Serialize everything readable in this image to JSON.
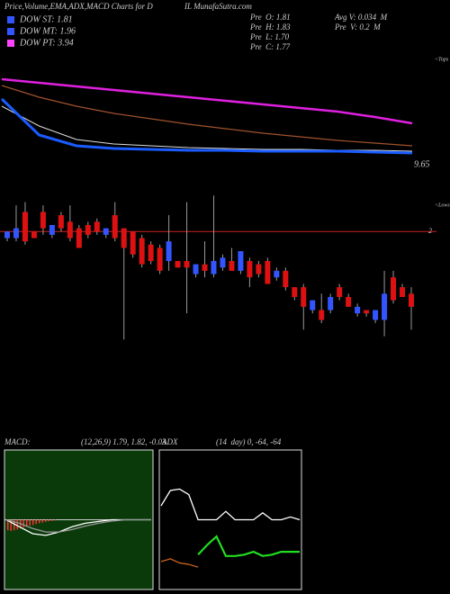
{
  "header": {
    "title": "Price,Volume,EMA,ADX,MACD Charts for D",
    "site": "IL MunafaSutra.com"
  },
  "legend": [
    {
      "label": "DOW ST: 1.81",
      "color": "#3355ff"
    },
    {
      "label": "DOW MT: 1.96",
      "color": "#3355ff"
    },
    {
      "label": "DOW PT: 3.94",
      "color": "#ff44ff"
    }
  ],
  "stats": [
    "Pre  O: 1.81",
    "Pre  H: 1.83",
    "Pre  L: 1.70",
    "Pre  C: 1.77",
    "Avg V: 0.034  M",
    "Pre  V: 0.2  M"
  ],
  "chart_data": [
    {
      "type": "line",
      "annotation": "<Tops",
      "ylim": [
        9.65,
        30
      ],
      "yticks": [
        9.65
      ],
      "series": [
        {
          "color": "#e020e0",
          "values": [
            28.28,
            27.43,
            26.57,
            25.72,
            24.86,
            24.0,
            23.15,
            22.29,
            21.43,
            20.57,
            19.29,
            17.79
          ]
        },
        {
          "color": "#a0522d",
          "values": [
            26.79,
            24.0,
            21.86,
            20.15,
            18.86,
            17.58,
            16.5,
            15.43,
            14.58,
            13.72,
            13.08,
            12.43
          ]
        },
        {
          "color": "#dddddd",
          "values": [
            21.86,
            17.15,
            13.93,
            12.86,
            12.43,
            12.0,
            11.79,
            11.58,
            11.58,
            11.36,
            11.36,
            11.15
          ]
        },
        {
          "color": "#1a5cff",
          "values": [
            23.57,
            15.01,
            12.43,
            11.79,
            11.58,
            11.36,
            11.36,
            11.15,
            11.15,
            11.15,
            10.94,
            10.72
          ]
        }
      ]
    },
    {
      "type": "candlestick",
      "annotation": "<Lows",
      "ylim": [
        1.58,
        2.13
      ],
      "yticks": [
        2
      ],
      "up_color": "#3355ff",
      "down_color": "#dd1111",
      "open": [
        1.98,
        1.98,
        2.06,
        2.0,
        2.06,
        1.99,
        2.05,
        2.03,
        2.01,
        2.02,
        2.03,
        1.99,
        2.05,
        2.01,
        2.0,
        1.98,
        1.96,
        1.95,
        1.91,
        1.91,
        1.91,
        1.87,
        1.9,
        1.87,
        1.89,
        1.91,
        1.88,
        1.91,
        1.9,
        1.91,
        1.86,
        1.88,
        1.83,
        1.83,
        1.76,
        1.76,
        1.76,
        1.83,
        1.8,
        1.75,
        1.76,
        1.73,
        1.73,
        1.86,
        1.83,
        1.81
      ],
      "high": [
        2.0,
        2.08,
        2.09,
        2.0,
        2.08,
        2.02,
        2.06,
        2.08,
        2.02,
        2.03,
        2.04,
        2.01,
        2.09,
        2.01,
        2.0,
        1.99,
        1.97,
        1.96,
        2.05,
        1.91,
        2.09,
        1.9,
        1.97,
        2.11,
        1.93,
        1.95,
        1.94,
        1.92,
        1.91,
        1.92,
        1.89,
        1.89,
        1.83,
        1.84,
        1.79,
        1.81,
        1.81,
        1.84,
        1.81,
        1.78,
        1.76,
        1.76,
        1.88,
        1.88,
        1.84,
        1.83
      ],
      "low": [
        1.97,
        1.97,
        1.96,
        1.98,
        1.99,
        1.98,
        2.0,
        1.97,
        1.95,
        1.98,
        1.99,
        1.98,
        1.97,
        1.67,
        1.92,
        1.89,
        1.9,
        1.87,
        1.88,
        1.89,
        1.75,
        1.86,
        1.86,
        1.86,
        1.88,
        1.88,
        1.87,
        1.83,
        1.86,
        1.84,
        1.85,
        1.82,
        1.79,
        1.7,
        1.75,
        1.72,
        1.75,
        1.79,
        1.77,
        1.74,
        1.74,
        1.72,
        1.68,
        1.78,
        1.8,
        1.7
      ],
      "close": [
        2.0,
        2.01,
        1.97,
        1.98,
        2.01,
        2.02,
        2.01,
        1.98,
        1.95,
        1.99,
        2.0,
        2.01,
        1.98,
        1.95,
        1.93,
        1.9,
        1.91,
        1.88,
        1.97,
        1.89,
        1.89,
        1.9,
        1.88,
        1.91,
        1.92,
        1.88,
        1.94,
        1.86,
        1.87,
        1.84,
        1.88,
        1.83,
        1.8,
        1.77,
        1.79,
        1.73,
        1.8,
        1.8,
        1.77,
        1.77,
        1.75,
        1.76,
        1.81,
        1.79,
        1.8,
        1.77
      ]
    },
    {
      "type": "macd",
      "title": "MACD:",
      "subtitle": "(12,26,9) 1.79, 1.82, -0.03",
      "ylim": [
        -2,
        2
      ],
      "background": "#0a3a0a",
      "series": [
        {
          "color": "#ffffff",
          "values": [
            0,
            -0.2,
            -0.4,
            -0.45,
            -0.35,
            -0.2,
            -0.1,
            -0.05,
            0,
            0,
            0,
            0
          ]
        },
        {
          "color": "#999999",
          "values": [
            0,
            -0.1,
            -0.25,
            -0.35,
            -0.35,
            -0.28,
            -0.18,
            -0.1,
            -0.04,
            0,
            0,
            0
          ]
        }
      ],
      "histogram": {
        "color": "#ff3333",
        "values": [
          -0.3,
          -0.32,
          -0.3,
          -0.28,
          -0.25,
          -0.22,
          -0.2,
          -0.17,
          -0.15,
          -0.12,
          -0.1,
          -0.08,
          -0.06,
          -0.04,
          -0.03,
          -0.02
        ]
      }
    },
    {
      "type": "adx",
      "title": "ADX",
      "subtitle": "(14  day) 0, -64, -64",
      "ylim": [
        0,
        100
      ],
      "background": "#000000",
      "series": [
        {
          "color": "#ffffff",
          "values": [
            60,
            71,
            72,
            68,
            50,
            50,
            50,
            56,
            50,
            50,
            50,
            55,
            50,
            50,
            52,
            50
          ]
        },
        {
          "color": "#22dd22",
          "values": [
            null,
            null,
            null,
            null,
            25,
            32,
            38,
            24,
            24,
            25,
            27,
            24,
            25,
            27,
            27,
            27
          ]
        },
        {
          "color": "#d2691e",
          "values": [
            20,
            22,
            19,
            18,
            16,
            null,
            null,
            null,
            null,
            null,
            null,
            null,
            null,
            null,
            null,
            null
          ]
        }
      ]
    }
  ]
}
